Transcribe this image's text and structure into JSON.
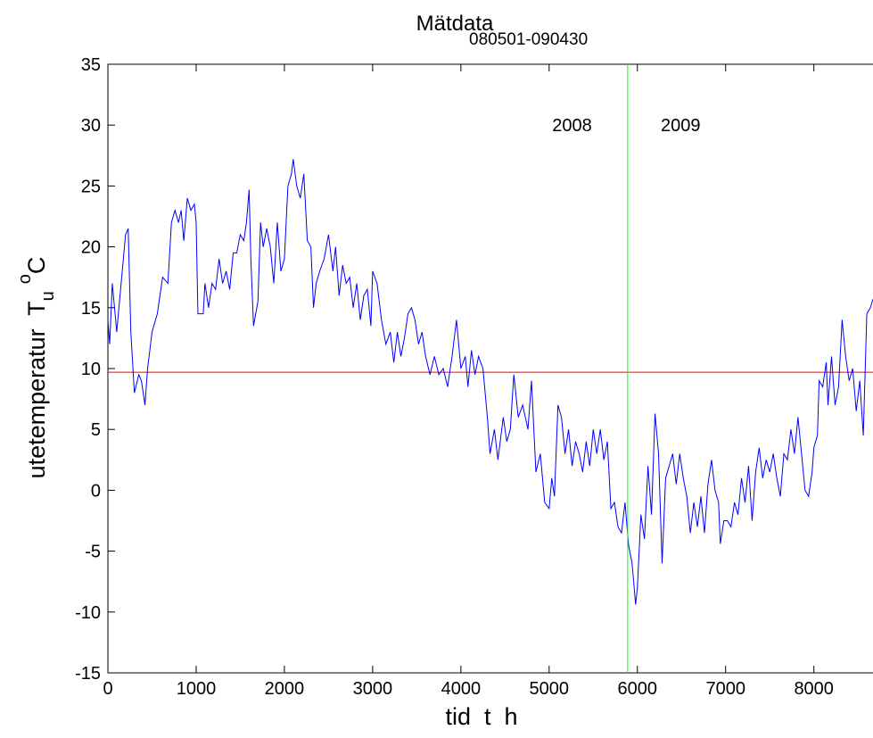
{
  "chart_data": {
    "type": "line",
    "title": "Mätdata",
    "title_subscript": "080501-090430",
    "xlabel": "tid  t  h",
    "ylabel": "utetemperatur  T",
    "ylabel_subscript": "u",
    "ylabel_superscript": "o",
    "ylabel_unit": "C",
    "xlim": [
      0,
      8670
    ],
    "xticks": [
      0,
      1000,
      2000,
      3000,
      4000,
      5000,
      6000,
      7000,
      8000
    ],
    "ylim": [
      -15,
      35
    ],
    "yticks": [
      -15,
      -10,
      -5,
      0,
      5,
      10,
      15,
      20,
      25,
      30,
      35
    ],
    "grid": false,
    "annotations": [
      {
        "text": "2008",
        "x": 5260,
        "y": 30
      },
      {
        "text": "2009",
        "x": 6490,
        "y": 30
      }
    ],
    "vlines": [
      {
        "x": 5890,
        "color": "#00ff00"
      }
    ],
    "hlines": [
      {
        "y": 9.7,
        "color": "#ff0000"
      }
    ],
    "x": [
      0,
      20,
      50,
      100,
      150,
      200,
      230,
      260,
      300,
      350,
      380,
      420,
      450,
      500,
      560,
      620,
      680,
      720,
      760,
      800,
      830,
      860,
      900,
      940,
      980,
      1000,
      1020,
      1080,
      1100,
      1140,
      1180,
      1220,
      1260,
      1300,
      1340,
      1380,
      1420,
      1460,
      1500,
      1540,
      1570,
      1600,
      1620,
      1650,
      1700,
      1730,
      1760,
      1800,
      1840,
      1880,
      1920,
      1960,
      2000,
      2040,
      2080,
      2100,
      2140,
      2180,
      2220,
      2260,
      2300,
      2330,
      2360,
      2400,
      2450,
      2500,
      2550,
      2580,
      2620,
      2660,
      2700,
      2740,
      2780,
      2820,
      2860,
      2900,
      2940,
      2980,
      3000,
      3050,
      3100,
      3150,
      3200,
      3240,
      3280,
      3320,
      3360,
      3400,
      3440,
      3480,
      3520,
      3560,
      3600,
      3650,
      3700,
      3750,
      3800,
      3850,
      3900,
      3950,
      4000,
      4050,
      4080,
      4120,
      4160,
      4200,
      4250,
      4300,
      4330,
      4380,
      4420,
      4480,
      4520,
      4560,
      4600,
      4650,
      4700,
      4760,
      4800,
      4850,
      4900,
      4950,
      5000,
      5030,
      5060,
      5100,
      5140,
      5180,
      5220,
      5260,
      5300,
      5340,
      5380,
      5420,
      5460,
      5500,
      5540,
      5580,
      5620,
      5660,
      5700,
      5740,
      5780,
      5820,
      5860,
      5900,
      5940,
      5980,
      6000,
      6040,
      6080,
      6120,
      6160,
      6200,
      6240,
      6280,
      6320,
      6360,
      6400,
      6440,
      6480,
      6520,
      6560,
      6600,
      6640,
      6680,
      6720,
      6760,
      6800,
      6840,
      6880,
      6920,
      6940,
      6980,
      7020,
      7060,
      7100,
      7140,
      7180,
      7220,
      7260,
      7300,
      7340,
      7380,
      7420,
      7460,
      7500,
      7540,
      7580,
      7620,
      7660,
      7700,
      7740,
      7780,
      7820,
      7860,
      7900,
      7940,
      7980,
      8000,
      8040,
      8060,
      8100,
      8140,
      8160,
      8200,
      8240,
      8280,
      8320,
      8360,
      8400,
      8440,
      8480,
      8520,
      8560,
      8600,
      8640,
      8670
    ],
    "series": [
      {
        "color": "#0000ff",
        "values": [
          14,
          12,
          17,
          13,
          17,
          21,
          21.5,
          13,
          8,
          9.5,
          9,
          7,
          10,
          13,
          14.5,
          17.5,
          17,
          22,
          23,
          22,
          23,
          20.5,
          24,
          23,
          23.5,
          22,
          14.5,
          14.5,
          17,
          15,
          17,
          16.5,
          19,
          17,
          18,
          16.5,
          19.5,
          19.5,
          21,
          20.5,
          22,
          24.7,
          19,
          13.5,
          15.5,
          22,
          20,
          21.5,
          20,
          17,
          22,
          18,
          19,
          25,
          26,
          27.2,
          25,
          24,
          26,
          20.5,
          20,
          15,
          17,
          18,
          19,
          21,
          18,
          20,
          16,
          18.5,
          17,
          17.5,
          15,
          17,
          14,
          16,
          16.5,
          13.5,
          18,
          17,
          14,
          12,
          13,
          10.5,
          13,
          11,
          12.5,
          14.5,
          15,
          14,
          12,
          13,
          11,
          9.5,
          11,
          9.5,
          10,
          8.5,
          11,
          14,
          10,
          11,
          8.5,
          11.5,
          9.5,
          11,
          10,
          6,
          3,
          5,
          2.5,
          6,
          4,
          5,
          9.5,
          6,
          7,
          5,
          9,
          1.5,
          3,
          -1,
          -1.5,
          1,
          -0.5,
          7,
          6,
          3,
          5,
          2,
          4,
          3,
          1.5,
          4,
          2,
          5,
          3,
          5,
          2.5,
          4,
          -1.5,
          -1,
          -3,
          -3.5,
          -1,
          -4.5,
          -6,
          -9.4,
          -8,
          -2,
          -4,
          2,
          -2,
          6.3,
          3,
          -6,
          1,
          2,
          3,
          0.5,
          3,
          1,
          -0.5,
          -3.5,
          -1,
          -3,
          -0.5,
          -3.5,
          0.5,
          2.5,
          0,
          -1,
          -4.4,
          -2.5,
          -2.5,
          -3,
          -1,
          -2,
          1,
          -1,
          2,
          -2.5,
          1.5,
          3.5,
          1,
          2.5,
          1.5,
          3,
          1,
          -0.5,
          3,
          2.5,
          5,
          3,
          6,
          3,
          0,
          -0.5,
          1.5,
          3.5,
          4.5,
          9,
          8.5,
          10.5,
          7,
          11,
          7,
          8.5,
          14,
          11,
          9,
          10,
          6.5,
          9,
          4.5,
          14.5,
          15,
          15.7
        ]
      }
    ]
  }
}
